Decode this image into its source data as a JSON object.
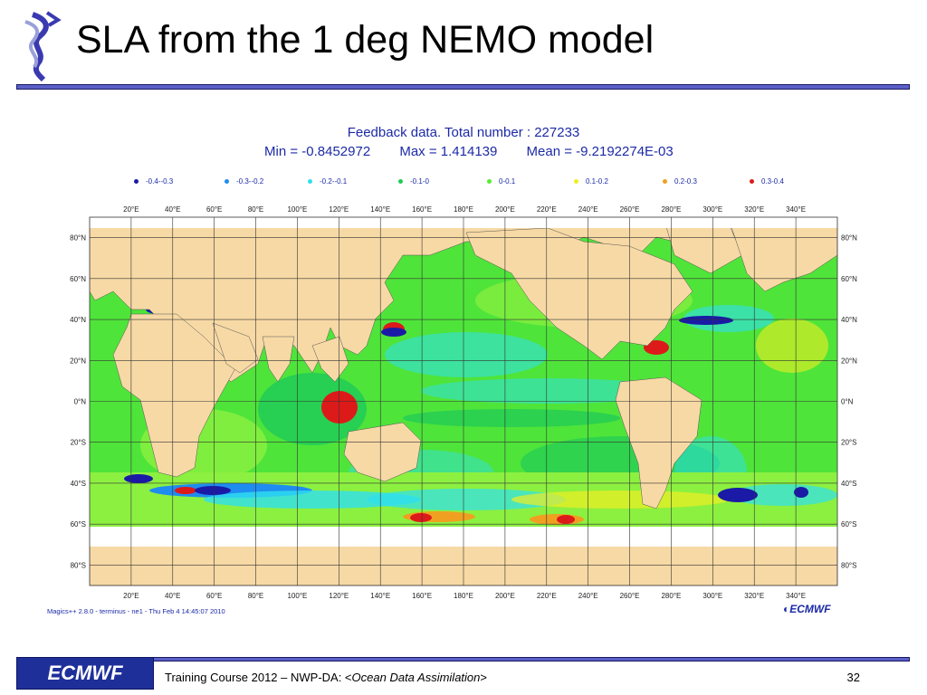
{
  "slide": {
    "title": "SLA from the 1 deg NEMO model",
    "footer": {
      "logo_text": "ECMWF",
      "course": "Training Course 2012 – NWP-DA: <",
      "topic": "Ocean Data Assimilation",
      "course_suffix": ">",
      "page_number": "32"
    }
  },
  "feedback": {
    "line1": "Feedback data. Total number :   227233",
    "min_text": "Min =   -0.8452972",
    "max_text": "Max =   1.414139",
    "mean_text": "Mean =   -9.2192274E-03"
  },
  "legend": [
    {
      "label": "-0.4--0.3",
      "color": "#1a1aa6"
    },
    {
      "label": "-0.3--0.2",
      "color": "#1f8cf0"
    },
    {
      "label": "-0.2--0.1",
      "color": "#2ee0f0"
    },
    {
      "label": "-0.1-0",
      "color": "#22cc55"
    },
    {
      "label": "0-0.1",
      "color": "#55ee33"
    },
    {
      "label": "0.1-0.2",
      "color": "#eeee22"
    },
    {
      "label": "0.2-0.3",
      "color": "#f0a020"
    },
    {
      "label": "0.3-0.4",
      "color": "#dd1a1a"
    }
  ],
  "map": {
    "lon_labels": [
      "20°E",
      "40°E",
      "60°E",
      "80°E",
      "100°E",
      "120°E",
      "140°E",
      "160°E",
      "180°E",
      "200°E",
      "220°E",
      "240°E",
      "260°E",
      "280°E",
      "300°E",
      "320°E",
      "340°E"
    ],
    "lat_labels": [
      "80°N",
      "60°N",
      "40°N",
      "20°N",
      "0°N",
      "20°S",
      "40°S",
      "60°S",
      "80°S"
    ],
    "land_color": "#f7d9a5",
    "ocean_base_color": "#55ee33"
  },
  "credits": {
    "magics": "Magics++ 2.8.0 - terminus - ne1 - Thu Feb  4 14:45:07 2010",
    "map_logo": "ECMWF"
  }
}
